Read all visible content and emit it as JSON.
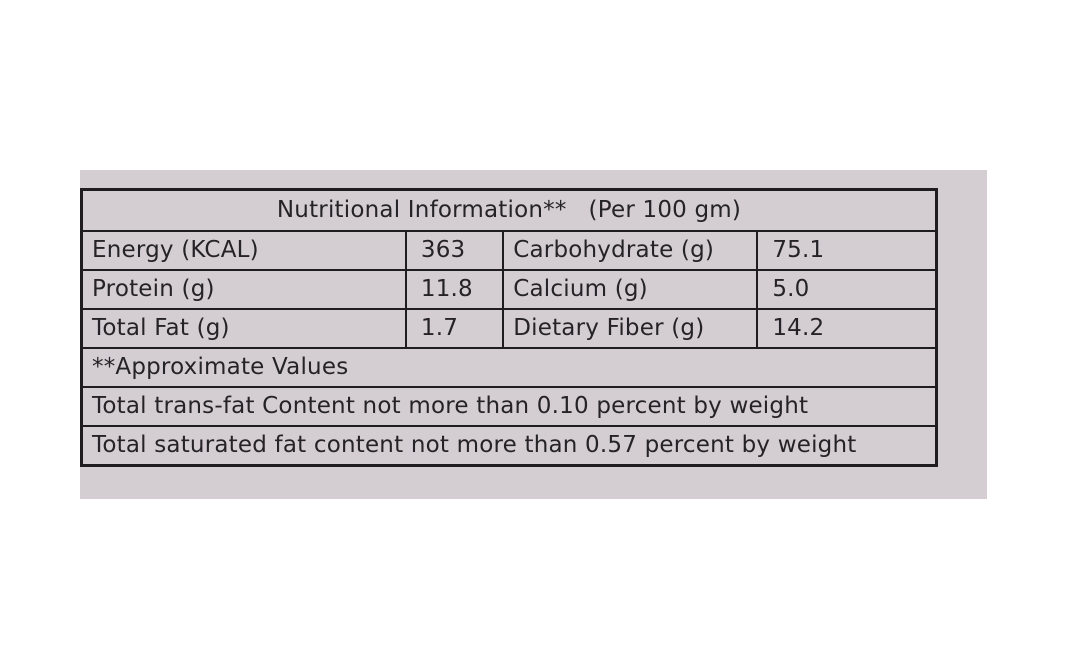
{
  "table": {
    "title": "Nutritional Information**",
    "basis": "(Per 100 gm)",
    "rows": [
      {
        "nutrient1": "Energy   (KCAL)",
        "value1": "363",
        "nutrient2": "Carbohydrate  (g)",
        "value2": "75.1"
      },
      {
        "nutrient1": "Protein  (g)",
        "value1": "11.8",
        "nutrient2": "Calcium  (g)",
        "value2": "5.0"
      },
      {
        "nutrient1": "Total Fat  (g)",
        "value1": "1.7",
        "nutrient2": "Dietary Fiber (g)",
        "value2": "14.2"
      }
    ],
    "notes": [
      "**Approximate Values",
      "Total trans-fat Content not more than 0.10 percent by weight",
      "Total saturated fat content not more than 0.57 percent by weight"
    ]
  }
}
